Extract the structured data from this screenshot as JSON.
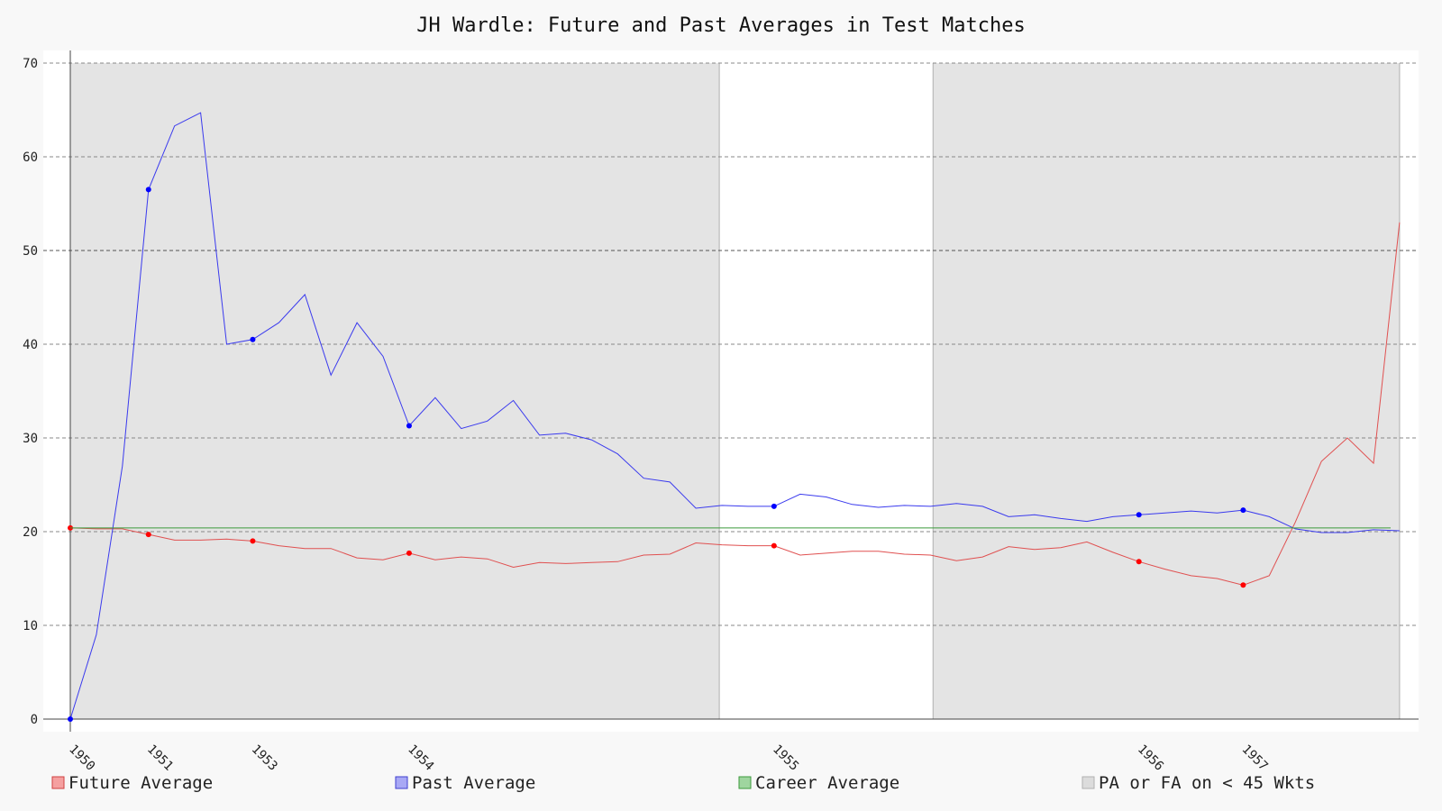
{
  "chart_data": {
    "type": "line",
    "title": "JH Wardle: Future and Past Averages in Test Matches",
    "xlabel": "",
    "ylabel": "",
    "ylim": [
      0,
      70
    ],
    "yticks": [
      0,
      10,
      20,
      30,
      40,
      50,
      60,
      70
    ],
    "grid": true,
    "legend_placement": "bottom",
    "colors": {
      "future": "#e05050",
      "past": "#3a3aee",
      "career": "#3c9a3c",
      "shade": "#e4e4e4",
      "marker_future": "#ff0000",
      "marker_past": "#0000ff"
    },
    "x_ticks": [
      {
        "label": "1950",
        "index": 0
      },
      {
        "label": "1951",
        "index": 3
      },
      {
        "label": "1953",
        "index": 7
      },
      {
        "label": "1954",
        "index": 13
      },
      {
        "label": "1955",
        "index": 27
      },
      {
        "label": "1956",
        "index": 41
      },
      {
        "label": "1957",
        "index": 45
      }
    ],
    "series": [
      {
        "name": "Future Average",
        "key": "future",
        "values": [
          20.4,
          20.3,
          20.3,
          19.7,
          19.1,
          19.1,
          19.2,
          19.0,
          18.5,
          18.2,
          18.2,
          17.2,
          17.0,
          17.7,
          17.0,
          17.3,
          17.1,
          16.2,
          16.7,
          16.6,
          16.7,
          16.8,
          17.5,
          17.6,
          18.8,
          18.6,
          18.5,
          18.5,
          17.5,
          17.7,
          17.9,
          17.9,
          17.6,
          17.5,
          16.9,
          17.3,
          18.4,
          18.1,
          18.3,
          18.9,
          17.8,
          16.8,
          16.0,
          15.3,
          15.0,
          14.3,
          15.3,
          21.0,
          27.5,
          30.0,
          27.3,
          53.0
        ],
        "markers": [
          0,
          3,
          7,
          13,
          27,
          41,
          45
        ]
      },
      {
        "name": "Past Average",
        "key": "past",
        "values": [
          0.0,
          9.0,
          27.0,
          56.5,
          63.3,
          64.7,
          40.0,
          40.5,
          42.3,
          45.3,
          36.7,
          42.3,
          38.7,
          31.3,
          34.3,
          31.0,
          31.8,
          34.0,
          30.3,
          30.5,
          29.8,
          28.3,
          25.7,
          25.3,
          22.5,
          22.8,
          22.7,
          22.7,
          24.0,
          23.7,
          22.9,
          22.6,
          22.8,
          22.7,
          23.0,
          22.7,
          21.6,
          21.8,
          21.4,
          21.1,
          21.6,
          21.8,
          22.0,
          22.2,
          22.0,
          22.3,
          21.6,
          20.3,
          19.9,
          19.9,
          20.2,
          20.1
        ],
        "markers": [
          0,
          3,
          7,
          13,
          27,
          41,
          45
        ]
      },
      {
        "name": "Career Average",
        "key": "career",
        "values": [
          20.4
        ]
      }
    ],
    "shaded_band": {
      "name": "PA or FA on < 45 Wkts",
      "ranges": [
        [
          0,
          24.9
        ],
        [
          33.1,
          51
        ]
      ]
    },
    "legend": [
      {
        "label": "Future Average",
        "key": "future"
      },
      {
        "label": "Past Average",
        "key": "past"
      },
      {
        "label": "Career Average",
        "key": "career"
      },
      {
        "label": "PA or FA on < 45 Wkts",
        "key": "shade"
      }
    ]
  }
}
